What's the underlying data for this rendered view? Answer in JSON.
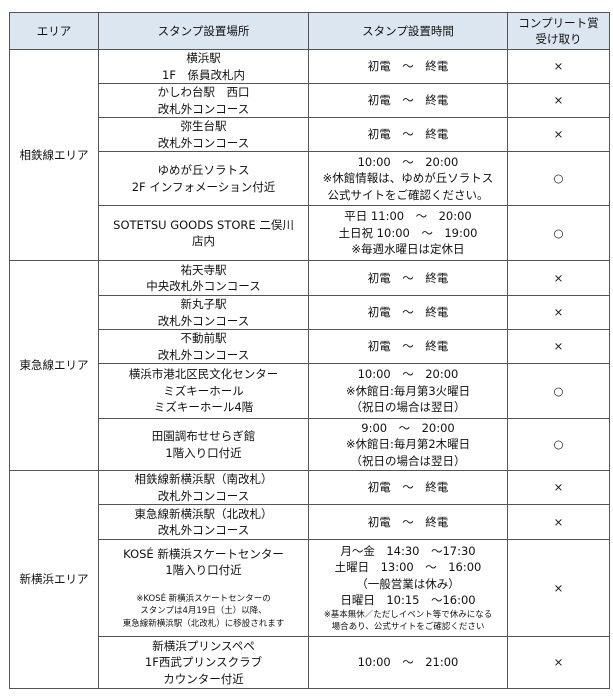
{
  "header": {
    "area": "エリア",
    "location": "スタンプ設置場所",
    "hours": "スタンプ設置時間",
    "complete": [
      "コンプリート賞",
      "受け取り"
    ]
  },
  "symbols": {
    "yes": "○",
    "no": "×"
  },
  "areas": [
    {
      "name": "相鉄線エリア",
      "rows": [
        {
          "location": [
            "横浜駅",
            "1F　係員改札内"
          ],
          "hours": [
            "初電　～　終電"
          ],
          "complete": "×"
        },
        {
          "location": [
            "かしわ台駅　西口",
            "改札外コンコース"
          ],
          "hours": [
            "初電　～　終電"
          ],
          "complete": "×"
        },
        {
          "location": [
            "弥生台駅",
            "改札外コンコース"
          ],
          "hours": [
            "初電　～　終電"
          ],
          "complete": "×"
        },
        {
          "location": [
            "ゆめが丘ソラトス",
            "2F インフォメーション付近"
          ],
          "hours": [
            "10:00　～　20:00",
            "※休館情報は、ゆめが丘ソラトス",
            "公式サイトをご確認ください。"
          ],
          "complete": "○"
        },
        {
          "location": [
            "SOTETSU GOODS STORE 二俣川",
            "店内"
          ],
          "hours": [
            "平日 11:00　～　20:00",
            "土日祝 10:00　～　19:00",
            "※毎週水曜日は定休日"
          ],
          "complete": "○"
        }
      ]
    },
    {
      "name": "東急線エリア",
      "rows": [
        {
          "location": [
            "祐天寺駅",
            "中央改札外コンコース"
          ],
          "hours": [
            "初電　～　終電"
          ],
          "complete": "×"
        },
        {
          "location": [
            "新丸子駅",
            "改札外コンコース"
          ],
          "hours": [
            "初電　～　終電"
          ],
          "complete": "×"
        },
        {
          "location": [
            "不動前駅",
            "改札外コンコース"
          ],
          "hours": [
            "初電　～　終電"
          ],
          "complete": "×"
        },
        {
          "location": [
            "横浜市港北区民文化センター",
            "ミズキーホール",
            "ミズキーホール4階"
          ],
          "hours": [
            "10:00　～　20:00",
            "※休館日:毎月第3火曜日",
            "（祝日の場合は翌日）"
          ],
          "complete": "○"
        },
        {
          "location": [
            "田園調布せせらぎ館",
            "1階入り口付近"
          ],
          "hours": [
            "9:00　～　20:00",
            "※休館日:毎月第2木曜日",
            "（祝日の場合は翌日）"
          ],
          "complete": "○"
        }
      ]
    },
    {
      "name": "新横浜エリア",
      "rows": [
        {
          "location": [
            "相鉄線新横浜駅（南改札）",
            "改札外コンコース"
          ],
          "hours": [
            "初電　～　終電"
          ],
          "complete": "×"
        },
        {
          "location": [
            "東急線新横浜駅（北改札）",
            "改札外コンコース"
          ],
          "hours": [
            "初電　～　終電"
          ],
          "complete": "×"
        },
        {
          "location": [
            "KOSÉ 新横浜スケートセンター",
            "1階入り口付近"
          ],
          "location_note": [
            "※KOSÉ 新横浜スケートセンターの",
            "スタンプは4月19日（土）以降、",
            "東急線新横浜駅（北改札）に移設されます"
          ],
          "hours": [
            "月～金　14:30　～17:30",
            "土曜日　13:00　～　16:00",
            "（一般営業は休み）",
            "日曜日　10:15　～16:00"
          ],
          "hours_note": [
            "※基本無休／ただしイベント等で休みになる",
            "場合あり、公式サイトをご確認ください"
          ],
          "complete": "×"
        },
        {
          "location": [
            "新横浜プリンスペペ",
            "1F西武プリンスクラブ",
            "カウンター付近"
          ],
          "hours": [
            "10:00　～　21:00"
          ],
          "complete": "×"
        }
      ]
    }
  ]
}
